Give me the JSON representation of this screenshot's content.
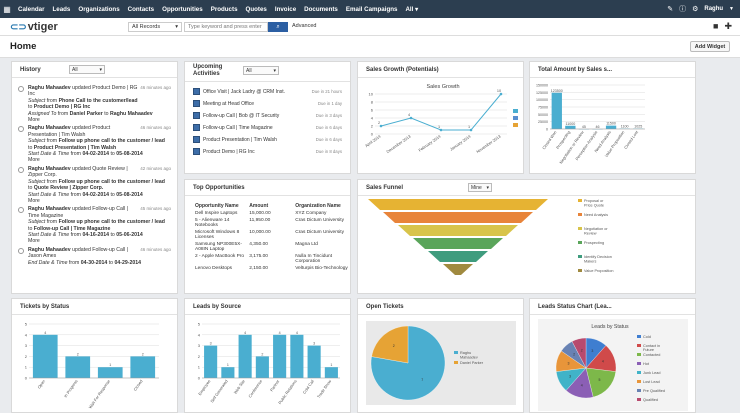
{
  "nav": {
    "items": [
      "Calendar",
      "Leads",
      "Organizations",
      "Contacts",
      "Opportunities",
      "Products",
      "Quotes",
      "Invoice",
      "Documents",
      "Email Campaigns",
      "All"
    ],
    "user": "Raghu"
  },
  "brand": {
    "name": "vtiger"
  },
  "search": {
    "scope": "All Records",
    "placeholder": "Type keyword and press enter",
    "advanced": "Advanced"
  },
  "page": {
    "title": "Home",
    "add_widget": "Add Widget"
  },
  "history": {
    "title": "History",
    "filter": "All",
    "items": [
      {
        "lines": [
          [
            "b",
            "Raghu Mahaadev"
          ],
          [
            "",
            "updated Product Demo | RG Inc"
          ]
        ],
        "detail": [
          [
            "i",
            "Subject"
          ],
          [
            "",
            " from "
          ],
          [
            "b",
            "Phone Call to the customer/lead"
          ]
        ],
        "detail2": [
          [
            "",
            ""
          ],
          [
            "",
            ""
          ]
        ],
        "line3": [
          [
            "",
            "to "
          ],
          [
            "b",
            "Product Demo | RG Inc"
          ]
        ],
        "line4": [
          [
            "i",
            "Assigned To"
          ],
          [
            "",
            " from "
          ],
          [
            "b",
            "Daniel Parker"
          ],
          [
            "",
            " to "
          ],
          [
            "b",
            "Raghu Mahaadev"
          ]
        ],
        "more": "More",
        "ago": "46 minutes ago"
      },
      {
        "lines": [
          [
            "b",
            "Raghu Mahaadev"
          ],
          [
            "",
            "updated Product Presentation | Tim Walsh"
          ]
        ],
        "detail": [
          [
            "i",
            "Subject"
          ],
          [
            "",
            " from "
          ],
          [
            "b",
            "Follow up phone call to the customer / lead"
          ]
        ],
        "line3": [
          [
            "",
            "to "
          ],
          [
            "b",
            "Product Presentation | Tim Walsh"
          ]
        ],
        "line4": [
          [
            "i",
            "Start Date & Time"
          ],
          [
            "",
            " from "
          ],
          [
            "b",
            "04-02-2014"
          ],
          [
            "",
            " to "
          ],
          [
            "b",
            "05-08-2014"
          ]
        ],
        "more": "More",
        "ago": "46 minutes ago"
      },
      {
        "lines": [
          [
            "b",
            "Raghu Mahaadev"
          ],
          [
            "",
            "updated Quote Review | Zipper Corp."
          ]
        ],
        "detail": [
          [
            "i",
            "Subject"
          ],
          [
            "",
            " from "
          ],
          [
            "b",
            "Follow up phone call to the customer / lead"
          ]
        ],
        "line3": [
          [
            "",
            "to "
          ],
          [
            "b",
            "Quote Review | Zipper Corp."
          ]
        ],
        "line4": [
          [
            "i",
            "Start Date & Time"
          ],
          [
            "",
            " from "
          ],
          [
            "b",
            "04-02-2014"
          ],
          [
            "",
            " to "
          ],
          [
            "b",
            "05-08-2014"
          ]
        ],
        "more": "More",
        "ago": "42 minutes ago"
      },
      {
        "lines": [
          [
            "b",
            "Raghu Mahaadev"
          ],
          [
            "",
            "updated Follow-up Call | Time Magazine"
          ]
        ],
        "detail": [
          [
            "i",
            "Subject"
          ],
          [
            "",
            " from "
          ],
          [
            "b",
            "Follow up phone call to the customer / lead"
          ]
        ],
        "line3": [
          [
            "",
            "to "
          ],
          [
            "b",
            "Follow-up Call | Time Magazine"
          ]
        ],
        "line4": [
          [
            "i",
            "Start Date & Time"
          ],
          [
            "",
            " from "
          ],
          [
            "b",
            "04-16-2014"
          ],
          [
            "",
            " to "
          ],
          [
            "b",
            "05-06-2014"
          ]
        ],
        "more": "More",
        "ago": "45 minutes ago"
      },
      {
        "lines": [
          [
            "b",
            "Raghu Mahaadev"
          ],
          [
            "",
            "updated Follow-up Call | Jason Ames"
          ]
        ],
        "detail": [
          [
            "i",
            "End Date & Time"
          ],
          [
            "",
            " from "
          ],
          [
            "b",
            "04-30-2014"
          ],
          [
            "",
            " to "
          ],
          [
            "b",
            "04-29-2014"
          ]
        ],
        "ago": "46 minutes ago"
      }
    ]
  },
  "activities": {
    "title": "Upcoming Activities",
    "filter": "All",
    "items": [
      {
        "label": "Office Visit | Jack Ladry @ CRM Inst.",
        "due": "Due in 21 hours"
      },
      {
        "label": "Meeting at Head Office",
        "due": "Due in 1 day"
      },
      {
        "label": "Follow-up Call | Bob @ IT Security",
        "due": "Due in 3 days"
      },
      {
        "label": "Follow-up Call | Time Magazine",
        "due": "Due in 6 days"
      },
      {
        "label": "Product Presentation | Tim Walsh",
        "due": "Due in 6 days"
      },
      {
        "label": "Product Demo | RG Inc",
        "due": "Due in 8 days"
      }
    ]
  },
  "opportunities": {
    "title": "Top Opportunities",
    "headers": [
      "Opportunity Name",
      "Amount",
      "Organization Name"
    ],
    "rows": [
      [
        "Dell Inspire Laptops",
        "15,000.00",
        "XYZ Company"
      ],
      [
        "5 - Alienware 14 Notebooks",
        "11,950.00",
        "Cras Dictum University"
      ],
      [
        "Microsoft Windows 8 Licenses",
        "10,000.00",
        "Cras Dictum University"
      ],
      [
        "Samsung NP300E5X-A08IN Laptop",
        "4,350.00",
        "Magna Ltd"
      ],
      [
        "2 - Apple MacBook Pro",
        "3,175.00",
        "Nulla In Tincidunt Corporation"
      ],
      [
        "Lenovo Desktops",
        "2,150.00",
        "Velturpis Bio-Technology"
      ]
    ]
  },
  "sales_growth": {
    "title": "Sales Growth (Potentials)",
    "chart_title": "Sales Growth",
    "legend": [
      "",
      "",
      ""
    ]
  },
  "total_amount": {
    "title": "Total Amount by Sales s..."
  },
  "sales_funnel": {
    "title": "Sales Funnel",
    "filter": "Mine",
    "legend": [
      "Proposal or Price Quote",
      "Need Analysis",
      "Negotiation or Review",
      "Prospecting",
      "Identify Decision Makers",
      "Value Proposition"
    ]
  },
  "tickets_status": {
    "title": "Tickets by Status"
  },
  "leads_source": {
    "title": "Leads by Source"
  },
  "open_tickets": {
    "title": "Open Tickets",
    "legend": [
      "Raghu Mahaadev",
      "Daniel Parker"
    ]
  },
  "leads_status": {
    "title": "Leads Status Chart (Lea...",
    "chart_title": "Leads by Status",
    "legend": [
      "Cold",
      "Contact in Future",
      "Contacted",
      "Hot",
      "Junk Lead",
      "Lost Lead",
      "Pre Qualified",
      "Qualified"
    ]
  },
  "chart_data": [
    {
      "type": "line",
      "title": "Sales Growth",
      "categories": [
        "April 2014",
        "December 2013",
        "February 2014",
        "January 2014",
        "November 2013"
      ],
      "values": [
        2,
        4,
        1,
        1,
        10
      ],
      "ylim": [
        0,
        10
      ],
      "yticks": [
        0,
        2,
        4,
        6,
        8,
        10
      ]
    },
    {
      "type": "bar",
      "categories": [
        "Closed Won",
        "Prospecting",
        "Negotiation or Review",
        "Perception Analysis",
        "Need Analysis",
        "Value Proposition",
        "Closed Lost"
      ],
      "values": [
        123500,
        11000,
        45,
        46,
        11500,
        1100,
        1025
      ],
      "value_labels": [
        "123500",
        "11000",
        "45",
        "46",
        "11500",
        "1100",
        "1025"
      ],
      "ylim": [
        0,
        150000
      ],
      "yticks": [
        "0",
        "25000",
        "50000",
        "75000",
        "100000",
        "125000",
        "150000"
      ]
    },
    {
      "type": "bar",
      "categories": [
        "Open",
        "In Progress",
        "Wait For Response",
        "Closed"
      ],
      "values": [
        4,
        2,
        1,
        2
      ],
      "ylim": [
        0,
        5
      ],
      "yticks": [
        0,
        1,
        2,
        3,
        4,
        5
      ]
    },
    {
      "type": "bar",
      "categories": [
        "Employee",
        "Self Generated",
        "Web Site",
        "Conference",
        "Partner",
        "Public Relations",
        "Cold Call",
        "Trade Show"
      ],
      "values": [
        3,
        1,
        4,
        2,
        4,
        4,
        3,
        1
      ],
      "ylim": [
        0,
        5
      ],
      "yticks": [
        0,
        1,
        2,
        3,
        4,
        5
      ]
    },
    {
      "type": "pie",
      "categories": [
        "Raghu Mahaadev",
        "Daniel Parker"
      ],
      "values": [
        7,
        2
      ],
      "value_labels": [
        "7",
        "2"
      ]
    },
    {
      "type": "pie",
      "title": "Leads by Status",
      "categories": [
        "Cold",
        "Contact in Future",
        "Contacted",
        "Hot",
        "Junk Lead",
        "Lost Lead",
        "Pre Qualified",
        "Qualified"
      ],
      "values": [
        3,
        4,
        5,
        4,
        3,
        3,
        2,
        2
      ],
      "value_labels": [
        "3",
        "4",
        "5",
        "4",
        "3",
        "3",
        "2",
        "2"
      ]
    }
  ],
  "colors": {
    "nav": "#2c3e50",
    "bar": "#4aaed0",
    "funnel": [
      "#e6b333",
      "#e8843a",
      "#d8c44a",
      "#5aa55a",
      "#3f9c7e",
      "#a08a3f"
    ],
    "pie_tickets": [
      "#4aaed0",
      "#e6a335"
    ],
    "pie_leads": [
      "#3f7ed0",
      "#d04a4a",
      "#7db84a",
      "#8b5fb5",
      "#40b3c8",
      "#e8953a",
      "#6882b3",
      "#b84a6e"
    ]
  }
}
